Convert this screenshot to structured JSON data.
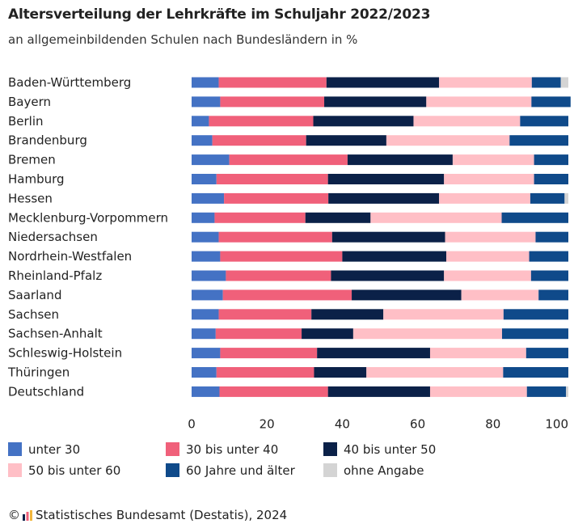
{
  "title": "Altersverteilung der Lehrkräfte im Schuljahr 2022/2023",
  "subtitle": "an allgemeinbildenden Schulen nach Bundesländern in %",
  "source": {
    "copyright": "©",
    "text": "Statistisches Bundesamt (Destatis), 2024"
  },
  "colors": {
    "unter_30": "#4472c4",
    "30_bis_40": "#f0607a",
    "40_bis_50": "#0b2148",
    "50_bis_60": "#ffbfc6",
    "60_plus": "#0f4a8a",
    "ohne_angabe": "#d4d4d4"
  },
  "chart_data": {
    "type": "bar",
    "orientation": "horizontal",
    "stacked": true,
    "title": "Altersverteilung der Lehrkräfte im Schuljahr 2022/2023",
    "subtitle": "an allgemeinbildenden Schulen nach Bundesländern in %",
    "xlabel": "",
    "ylabel": "",
    "xlim": [
      0,
      100
    ],
    "xticks": [
      "0",
      "20",
      "40",
      "60",
      "80",
      "100"
    ],
    "grid": false,
    "legend_position": "bottom",
    "categories": [
      "Baden-Württemberg",
      "Bayern",
      "Berlin",
      "Brandenburg",
      "Bremen",
      "Hamburg",
      "Hessen",
      "Mecklenburg-Vorpommern",
      "Niedersachsen",
      "Nordrhein-Westfalen",
      "Rheinland-Pfalz",
      "Saarland",
      "Sachsen",
      "Sachsen-Anhalt",
      "Schleswig-Holstein",
      "Thüringen",
      "Deutschland"
    ],
    "series": [
      {
        "name": "unter 30",
        "values": [
          7.2,
          7.6,
          4.6,
          5.5,
          10.0,
          6.6,
          8.6,
          6.1,
          7.2,
          7.6,
          9.1,
          8.3,
          7.2,
          6.4,
          7.6,
          6.6,
          7.4
        ]
      },
      {
        "name": "30 bis unter 40",
        "values": [
          28.6,
          27.6,
          27.7,
          24.9,
          31.4,
          29.6,
          27.7,
          24.1,
          30.1,
          32.4,
          27.9,
          34.2,
          24.6,
          22.8,
          25.7,
          25.9,
          28.8
        ]
      },
      {
        "name": "40 bis unter 50",
        "values": [
          29.9,
          27.1,
          26.6,
          21.3,
          27.9,
          30.8,
          29.4,
          17.3,
          30.0,
          27.6,
          30.0,
          29.1,
          19.1,
          13.7,
          30.0,
          13.9,
          27.1
        ]
      },
      {
        "name": "50 bis unter 60",
        "values": [
          24.6,
          27.9,
          28.3,
          32.7,
          21.6,
          23.9,
          24.2,
          34.8,
          24.0,
          22.0,
          23.1,
          20.5,
          31.9,
          39.5,
          25.5,
          36.3,
          25.7
        ]
      },
      {
        "name": "60 Jahre und älter",
        "values": [
          7.7,
          10.4,
          12.8,
          15.6,
          9.1,
          9.1,
          9.1,
          17.7,
          8.7,
          10.4,
          9.9,
          7.9,
          17.2,
          17.6,
          11.2,
          17.3,
          10.4
        ]
      },
      {
        "name": "ohne Angabe",
        "values": [
          2.0,
          0.0,
          0.0,
          0.0,
          0.0,
          0.0,
          1.0,
          0.0,
          0.0,
          0.0,
          0.0,
          0.0,
          0.0,
          0.0,
          0.0,
          0.0,
          0.6
        ]
      }
    ]
  }
}
